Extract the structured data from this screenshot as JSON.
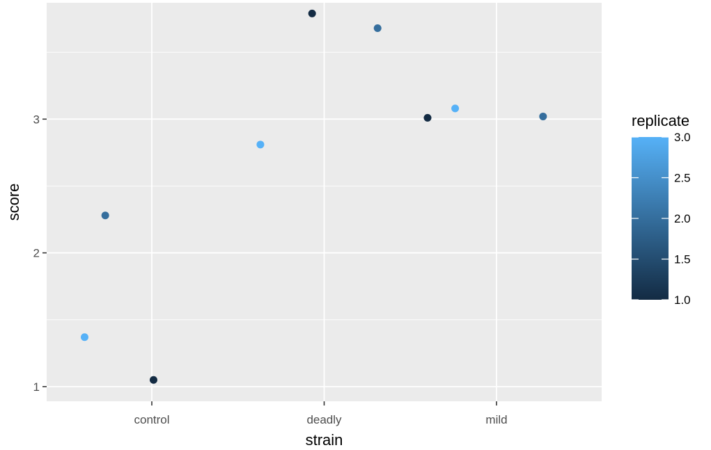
{
  "chart_data": {
    "type": "scatter",
    "title": "",
    "xlabel": "strain",
    "ylabel": "score",
    "categories": [
      "control",
      "deadly",
      "mild"
    ],
    "ylim": [
      0.89,
      3.87
    ],
    "y_ticks": [
      1,
      2,
      3
    ],
    "y_tick_labels": [
      "1",
      "2",
      "3"
    ],
    "grid": true,
    "points": [
      {
        "strain": "control",
        "jitter": -0.39,
        "score": 1.37,
        "replicate": 3
      },
      {
        "strain": "control",
        "jitter": -0.27,
        "score": 2.28,
        "replicate": 2
      },
      {
        "strain": "control",
        "jitter": 0.01,
        "score": 1.05,
        "replicate": 1
      },
      {
        "strain": "deadly",
        "jitter": -0.37,
        "score": 2.81,
        "replicate": 3
      },
      {
        "strain": "deadly",
        "jitter": -0.07,
        "score": 3.79,
        "replicate": 1
      },
      {
        "strain": "deadly",
        "jitter": 0.31,
        "score": 3.68,
        "replicate": 2
      },
      {
        "strain": "mild",
        "jitter": -0.4,
        "score": 3.01,
        "replicate": 1
      },
      {
        "strain": "mild",
        "jitter": -0.24,
        "score": 3.08,
        "replicate": 3
      },
      {
        "strain": "mild",
        "jitter": 0.27,
        "score": 3.02,
        "replicate": 2
      }
    ],
    "legend": {
      "title": "replicate",
      "position": "right",
      "min": 1.0,
      "max": 3.0,
      "ticks": [
        1.0,
        1.5,
        2.0,
        2.5,
        3.0
      ],
      "tick_labels": [
        "1.0",
        "1.5",
        "2.0",
        "2.5",
        "3.0"
      ],
      "low_color": "#132B43",
      "high_color": "#56B1F7"
    },
    "colors": {
      "panel_background": "#EBEBEB",
      "grid_line": "#FFFFFF",
      "tick_text": "#4D4D4D",
      "axis_tick": "#333333"
    }
  }
}
